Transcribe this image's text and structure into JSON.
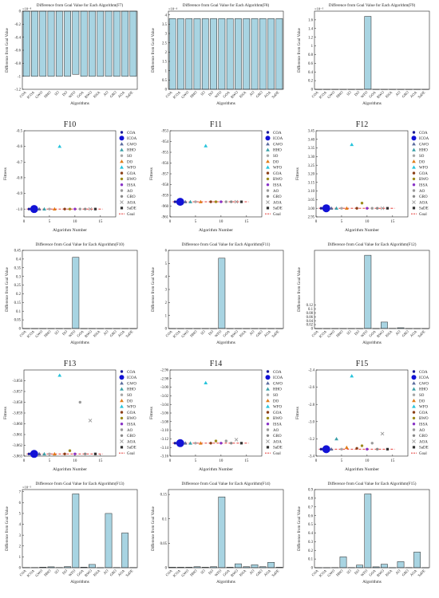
{
  "algorithms": [
    "COA",
    "ICOA",
    "GWO",
    "HHO",
    "SO",
    "DO",
    "WFO",
    "GOA",
    "BWO",
    "ISSA",
    "AO",
    "GRO",
    "AOA",
    "SaDE"
  ],
  "colors": {
    "bar_fill": "#a8d4e2",
    "bar_stroke": "#222222",
    "goal_line": "#e0201c",
    "markers": [
      "#1b1b9a",
      "#1212d6",
      "#5a6a9c",
      "#3aa0a8",
      "#a7a7a7",
      "#e07b18",
      "#26c4dc",
      "#8a3f17",
      "#9c8a1a",
      "#8832c6",
      "#9a9a9a",
      "#8a8a8a",
      "#9a9a9a",
      "#333333"
    ]
  },
  "legend": {
    "entries": [
      "COA",
      "ICOA",
      "GWO",
      "HHO",
      "SO",
      "DO",
      "WFO",
      "GOA",
      "BWO",
      "ISSA",
      "AO",
      "GRO",
      "AOA",
      "SaDE",
      "Goal"
    ],
    "placement": "right-outside"
  },
  "chart_data": [
    {
      "type": "bar",
      "title": "Difference from Goal Value for Each Algorithm(F7)",
      "xlabel": "Algorithms",
      "ylabel": "Difference from Goal Value",
      "categories": [
        "COA",
        "ICOA",
        "GWO",
        "HHO",
        "SO",
        "DO",
        "WFO",
        "GOA",
        "BWO",
        "ISSA",
        "AO",
        "GRO",
        "AOA",
        "SaDE"
      ],
      "values": [
        -1,
        -1,
        -1,
        -1,
        -1,
        -1,
        -0.97,
        -1,
        -1,
        -1,
        -1,
        -1,
        -1,
        -1
      ],
      "ylim": [
        -1.2,
        0
      ],
      "yticks": [
        -1.2,
        -1,
        -0.8,
        -0.6,
        -0.4,
        -0.2,
        0
      ],
      "yticklabels": [
        "-1.2",
        "-1",
        "-0.8",
        "-0.6",
        "-0.4",
        "-0.2",
        "0"
      ],
      "exponent": "×10⁻⁸"
    },
    {
      "type": "bar",
      "title": "Difference from Goal Value for Each Algorithm(F8)",
      "xlabel": "Algorithms",
      "ylabel": "Difference from Goal Value",
      "categories": [
        "COA",
        "ICOA",
        "GWO",
        "HHO",
        "SO",
        "DO",
        "WFO",
        "GOA",
        "BWO",
        "ISSA",
        "AO",
        "GRO",
        "AOA",
        "SaDE"
      ],
      "values": [
        3.8,
        3.8,
        3.8,
        3.8,
        3.8,
        3.8,
        3.8,
        3.8,
        3.8,
        3.8,
        3.8,
        3.8,
        3.8,
        3.8
      ],
      "ylim": [
        0,
        4.2
      ],
      "yticks": [
        0,
        0.5,
        1,
        1.5,
        2,
        2.5,
        3,
        3.5,
        4
      ],
      "yticklabels": [
        "0",
        "0.5",
        "1",
        "1.5",
        "2",
        "2.5",
        "3",
        "3.5",
        "4"
      ],
      "exponent": "×10⁻⁴"
    },
    {
      "type": "bar",
      "title": "Difference from Goal Value for Each Algorithm(F9)",
      "xlabel": "Algorithms",
      "ylabel": "Difference from Goal Value",
      "categories": [
        "COA",
        "ICOA",
        "GWO",
        "HHO",
        "SO",
        "DO",
        "WFO",
        "GOA",
        "BWO",
        "ISSA",
        "AO",
        "GRO",
        "AOA",
        "SaDE"
      ],
      "values": [
        0,
        0,
        0,
        0,
        0,
        0,
        1.68,
        0,
        0,
        0,
        0,
        0,
        0,
        0
      ],
      "ylim": [
        0,
        1.8
      ],
      "yticks": [
        0,
        0.2,
        0.4,
        0.6,
        0.8,
        1,
        1.2,
        1.4,
        1.6
      ],
      "yticklabels": [
        "0",
        "0.2",
        "0.4",
        "0.6",
        "0.8",
        "1",
        "1.2",
        "1.4",
        "1.6"
      ],
      "exponent": "×10⁻⁵"
    },
    {
      "type": "scatter",
      "title": "F10",
      "xlabel": "Algorithm Number",
      "ylabel": "Fitness",
      "x": [
        1,
        2,
        3,
        4,
        5,
        6,
        7,
        8,
        9,
        10,
        11,
        12,
        13,
        14
      ],
      "y": [
        -1,
        -1,
        -1,
        -1,
        -1,
        -1,
        -0.6,
        -1,
        -1,
        -1,
        -1,
        -1,
        -1,
        -1
      ],
      "goal": -1,
      "xlim": [
        0,
        18
      ],
      "xticks": [
        0,
        5,
        10,
        15
      ],
      "xticklabels": [
        "0",
        "5",
        "10",
        "15"
      ],
      "ylim": [
        -1.05,
        -0.5
      ],
      "yticks": [
        -1,
        -0.9,
        -0.8,
        -0.7,
        -0.6,
        -0.5
      ],
      "yticklabels": [
        "-1.0",
        "-0.9",
        "-0.8",
        "-0.7",
        "-0.6",
        "-0.5"
      ]
    },
    {
      "type": "scatter",
      "title": "F11",
      "xlabel": "Algorithm Number",
      "ylabel": "Fitness",
      "x": [
        1,
        2,
        3,
        4,
        5,
        6,
        7,
        8,
        9,
        10,
        11,
        12,
        13,
        14
      ],
      "y": [
        -959.6,
        -959.6,
        -959.6,
        -959.6,
        -959.6,
        -959.6,
        -954.4,
        -959.6,
        -959.6,
        -959.6,
        -959.6,
        -959.6,
        -959.6,
        -959.6
      ],
      "goal": -959.6,
      "xlim": [
        0,
        18
      ],
      "xticks": [
        0,
        5,
        10,
        15
      ],
      "xticklabels": [
        "0",
        "5",
        "10",
        "15"
      ],
      "ylim": [
        -961,
        -953
      ],
      "yticks": [
        -961,
        -960,
        -959,
        -958,
        -957,
        -956,
        -955,
        -954,
        -953
      ],
      "yticklabels": [
        "-961",
        "-960",
        "-959",
        "-958",
        "-957",
        "-956",
        "-955",
        "-954",
        "-953"
      ]
    },
    {
      "type": "scatter",
      "title": "F12",
      "xlabel": "Algorithm Number",
      "ylabel": "Fitness",
      "x": [
        1,
        2,
        3,
        4,
        5,
        6,
        7,
        8,
        9,
        10,
        11,
        12,
        13,
        14
      ],
      "y": [
        3,
        3,
        3,
        3,
        3,
        3,
        3.37,
        3,
        3.03,
        3,
        3,
        3,
        3,
        3
      ],
      "goal": 3,
      "xlim": [
        0,
        18
      ],
      "xticks": [
        0,
        5,
        10,
        15
      ],
      "xticklabels": [
        "0",
        "5",
        "10",
        "15"
      ],
      "ylim": [
        2.95,
        3.45
      ],
      "yticks": [
        2.95,
        3,
        3.05,
        3.1,
        3.15,
        3.2,
        3.25,
        3.3,
        3.35,
        3.4,
        3.45
      ],
      "yticklabels": [
        "2.95",
        "3.00",
        "3.05",
        "3.10",
        "3.15",
        "3.20",
        "3.25",
        "3.30",
        "3.35",
        "3.40",
        "3.45"
      ]
    },
    {
      "type": "bar",
      "title": "Difference from Goal Value for Each Algorithm(F10)",
      "xlabel": "Algorithms",
      "ylabel": "Difference from Goal Value",
      "categories": [
        "COA",
        "ICOA",
        "GWO",
        "HHO",
        "SO",
        "DO",
        "WFO",
        "GOA",
        "BWO",
        "ISSA",
        "AO",
        "GRO",
        "AOA",
        "SaDE"
      ],
      "values": [
        0,
        0,
        0,
        0,
        0,
        0,
        0.41,
        0,
        0,
        0,
        0,
        0,
        0,
        0
      ],
      "ylim": [
        0,
        0.45
      ],
      "yticks": [
        0,
        0.05,
        0.1,
        0.15,
        0.2,
        0.25,
        0.3,
        0.35,
        0.4,
        0.45
      ],
      "yticklabels": [
        "0",
        "0.05",
        "0.1",
        "0.15",
        "0.2",
        "0.25",
        "0.3",
        "0.35",
        "0.4",
        "0.45"
      ],
      "exponent": ""
    },
    {
      "type": "bar",
      "title": "Difference from Goal Value for Each Algorithm(F11)",
      "xlabel": "Algorithms",
      "ylabel": "Difference from Goal Value",
      "categories": [
        "COA",
        "ICOA",
        "GWO",
        "HHO",
        "SO",
        "DO",
        "WFO",
        "GOA",
        "BWO",
        "ISSA",
        "AO",
        "GRO",
        "AOA",
        "SaDE"
      ],
      "values": [
        0,
        0,
        0,
        0,
        0,
        0,
        5.4,
        0,
        0,
        0,
        0,
        0,
        0,
        0
      ],
      "ylim": [
        0,
        6
      ],
      "yticks": [
        0,
        1,
        2,
        3,
        4,
        5,
        6
      ],
      "yticklabels": [
        "0",
        "1",
        "2",
        "3",
        "4",
        "5",
        "6"
      ],
      "exponent": ""
    },
    {
      "type": "bar",
      "title": "Difference from Goal Value for Each Algorithm(F12)",
      "xlabel": "Algorithms",
      "ylabel": "Difference from Goal Value",
      "categories": [
        "COA",
        "ICOA",
        "GWO",
        "HHO",
        "SO",
        "DO",
        "WFO",
        "GOA",
        "BWO",
        "ISSA",
        "AO",
        "GRO",
        "AOA",
        "SaDE"
      ],
      "values": [
        0,
        0,
        0,
        0,
        0,
        0,
        0.375,
        0,
        0.033,
        0.001,
        0.004,
        0,
        0,
        0
      ],
      "ylim": [
        0,
        0.4
      ],
      "yticks": [
        0,
        0.02,
        0.04,
        0.06,
        0.08,
        0.1,
        0.12
      ],
      "yticklabels": [
        "0",
        "0.02",
        "0.04",
        "0.06",
        "0.08",
        "0.1",
        "0.12"
      ],
      "exponent": "",
      "yticks_note": "visible tick labels"
    },
    {
      "type": "scatter",
      "title": "F13",
      "xlabel": "Algorithm Number",
      "ylabel": "Fitness",
      "x": [
        1,
        2,
        3,
        4,
        5,
        6,
        7,
        8,
        9,
        10,
        11,
        12,
        13,
        14
      ],
      "y": [
        -3.8628,
        -3.8628,
        -3.8628,
        -3.8628,
        -3.8628,
        -3.8628,
        -3.8555,
        -3.8628,
        -3.8625,
        -3.8628,
        -3.858,
        -3.8628,
        -3.8597,
        -3.8628
      ],
      "goal": -3.8628,
      "xlim": [
        0,
        18
      ],
      "xticks": [
        0,
        5,
        10,
        15
      ],
      "xticklabels": [
        "0",
        "5",
        "10",
        "15"
      ],
      "ylim": [
        -3.863,
        -3.855
      ],
      "yticks": [
        -3.863,
        -3.862,
        -3.861,
        -3.86,
        -3.859,
        -3.858,
        -3.857,
        -3.856
      ],
      "yticklabels": [
        "-3.863",
        "-3.862",
        "-3.861",
        "-3.860",
        "-3.859",
        "-3.858",
        "-3.857",
        "-3.856"
      ]
    },
    {
      "type": "scatter",
      "title": "F14",
      "xlabel": "Algorithm Number",
      "ylabel": "Fitness",
      "x": [
        1,
        2,
        3,
        4,
        5,
        6,
        7,
        8,
        9,
        10,
        11,
        12,
        13,
        14
      ],
      "y": [
        -3.13,
        -3.13,
        -3.13,
        -3.13,
        -3.13,
        -3.13,
        -2.99,
        -3.13,
        -3.125,
        -3.13,
        -3.125,
        -3.13,
        -3.122,
        -3.13
      ],
      "goal": -3.13,
      "xlim": [
        0,
        18
      ],
      "xticks": [
        0,
        5,
        10,
        15
      ],
      "xticklabels": [
        "0",
        "5",
        "10",
        "15"
      ],
      "ylim": [
        -3.16,
        -2.96
      ],
      "yticks": [
        -3.16,
        -3.14,
        -3.12,
        -3.1,
        -3.08,
        -3.06,
        -3.04,
        -3.02,
        -3.0,
        -2.98,
        -2.96
      ],
      "yticklabels": [
        "-3.16",
        "-3.14",
        "-3.12",
        "-3.10",
        "-3.08",
        "-3.06",
        "-3.04",
        "-3.02",
        "-3.00",
        "-2.98",
        "-2.96"
      ]
    },
    {
      "type": "scatter",
      "title": "F15",
      "xlabel": "Algorithm Number",
      "ylabel": "Fitness",
      "x": [
        1,
        2,
        3,
        4,
        5,
        6,
        7,
        8,
        9,
        10,
        11,
        12,
        13,
        14
      ],
      "y": [
        -3.32,
        -3.32,
        -3.32,
        -3.2,
        -3.32,
        -3.3,
        -2.47,
        -3.31,
        -3.28,
        -3.32,
        -3.25,
        -3.32,
        -3.14,
        -3.32
      ],
      "goal": -3.32,
      "xlim": [
        0,
        18
      ],
      "xticks": [
        0,
        5,
        10,
        15
      ],
      "xticklabels": [
        "0",
        "5",
        "10",
        "15"
      ],
      "ylim": [
        -3.4,
        -2.4
      ],
      "yticks": [
        -3.4,
        -3.2,
        -3.0,
        -2.8,
        -2.6,
        -2.4
      ],
      "yticklabels": [
        "-3.4",
        "-3.2",
        "-3.0",
        "-2.8",
        "-2.6",
        "-2.4"
      ]
    },
    {
      "type": "bar",
      "title": "Difference from Goal Value for Each Algorithm(F13)",
      "xlabel": "Algorithms",
      "ylabel": "Difference from Goal Value",
      "categories": [
        "COA",
        "ICOA",
        "GWO",
        "HHO",
        "SO",
        "DO",
        "WFO",
        "GOA",
        "BWO",
        "ISSA",
        "AO",
        "GRO",
        "AOA",
        "SaDE"
      ],
      "values": [
        0.02,
        0.02,
        0.05,
        0.08,
        0.02,
        0.1,
        6.8,
        0.05,
        0.3,
        0.01,
        5.0,
        0.02,
        3.2,
        0.02
      ],
      "ylim": [
        0,
        7.2
      ],
      "yticks": [
        0,
        1,
        2,
        3,
        4,
        5,
        6,
        7
      ],
      "yticklabels": [
        "0",
        "1",
        "2",
        "3",
        "4",
        "5",
        "6",
        "7"
      ],
      "exponent": "×10⁻³"
    },
    {
      "type": "bar",
      "title": "Difference from Goal Value for Each Algorithm(F14)",
      "xlabel": "Algorithms",
      "ylabel": "Difference from Goal Value",
      "categories": [
        "COA",
        "ICOA",
        "GWO",
        "HHO",
        "SO",
        "DO",
        "WFO",
        "GOA",
        "BWO",
        "ISSA",
        "AO",
        "GRO",
        "AOA",
        "SaDE"
      ],
      "values": [
        0.001,
        0.001,
        0.001,
        0.002,
        0.001,
        0.002,
        0.145,
        0.001,
        0.008,
        0.002,
        0.006,
        0.002,
        0.011,
        0.001
      ],
      "ylim": [
        0,
        0.16
      ],
      "yticks": [
        0,
        0.05,
        0.1,
        0.15
      ],
      "yticklabels": [
        "0",
        "0.05",
        "0.1",
        "0.15"
      ],
      "exponent": ""
    },
    {
      "type": "bar",
      "title": "Difference from Goal Value for Each Algorithm(F15)",
      "xlabel": "Algorithms",
      "ylabel": "Difference from Goal Value",
      "categories": [
        "COA",
        "ICOA",
        "GWO",
        "HHO",
        "SO",
        "DO",
        "WFO",
        "GOA",
        "BWO",
        "ISSA",
        "AO",
        "GRO",
        "AOA",
        "SaDE"
      ],
      "values": [
        0.001,
        0.001,
        0.002,
        0.125,
        0.002,
        0.03,
        0.85,
        0.01,
        0.04,
        0.001,
        0.07,
        0.002,
        0.18,
        0.001
      ],
      "ylim": [
        0,
        0.9
      ],
      "yticks": [
        0,
        0.1,
        0.2,
        0.3,
        0.4,
        0.5,
        0.6,
        0.7,
        0.8,
        0.9
      ],
      "yticklabels": [
        "0",
        "0.1",
        "0.2",
        "0.3",
        "0.4",
        "0.5",
        "0.6",
        "0.7",
        "0.8",
        "0.9"
      ],
      "exponent": ""
    }
  ]
}
